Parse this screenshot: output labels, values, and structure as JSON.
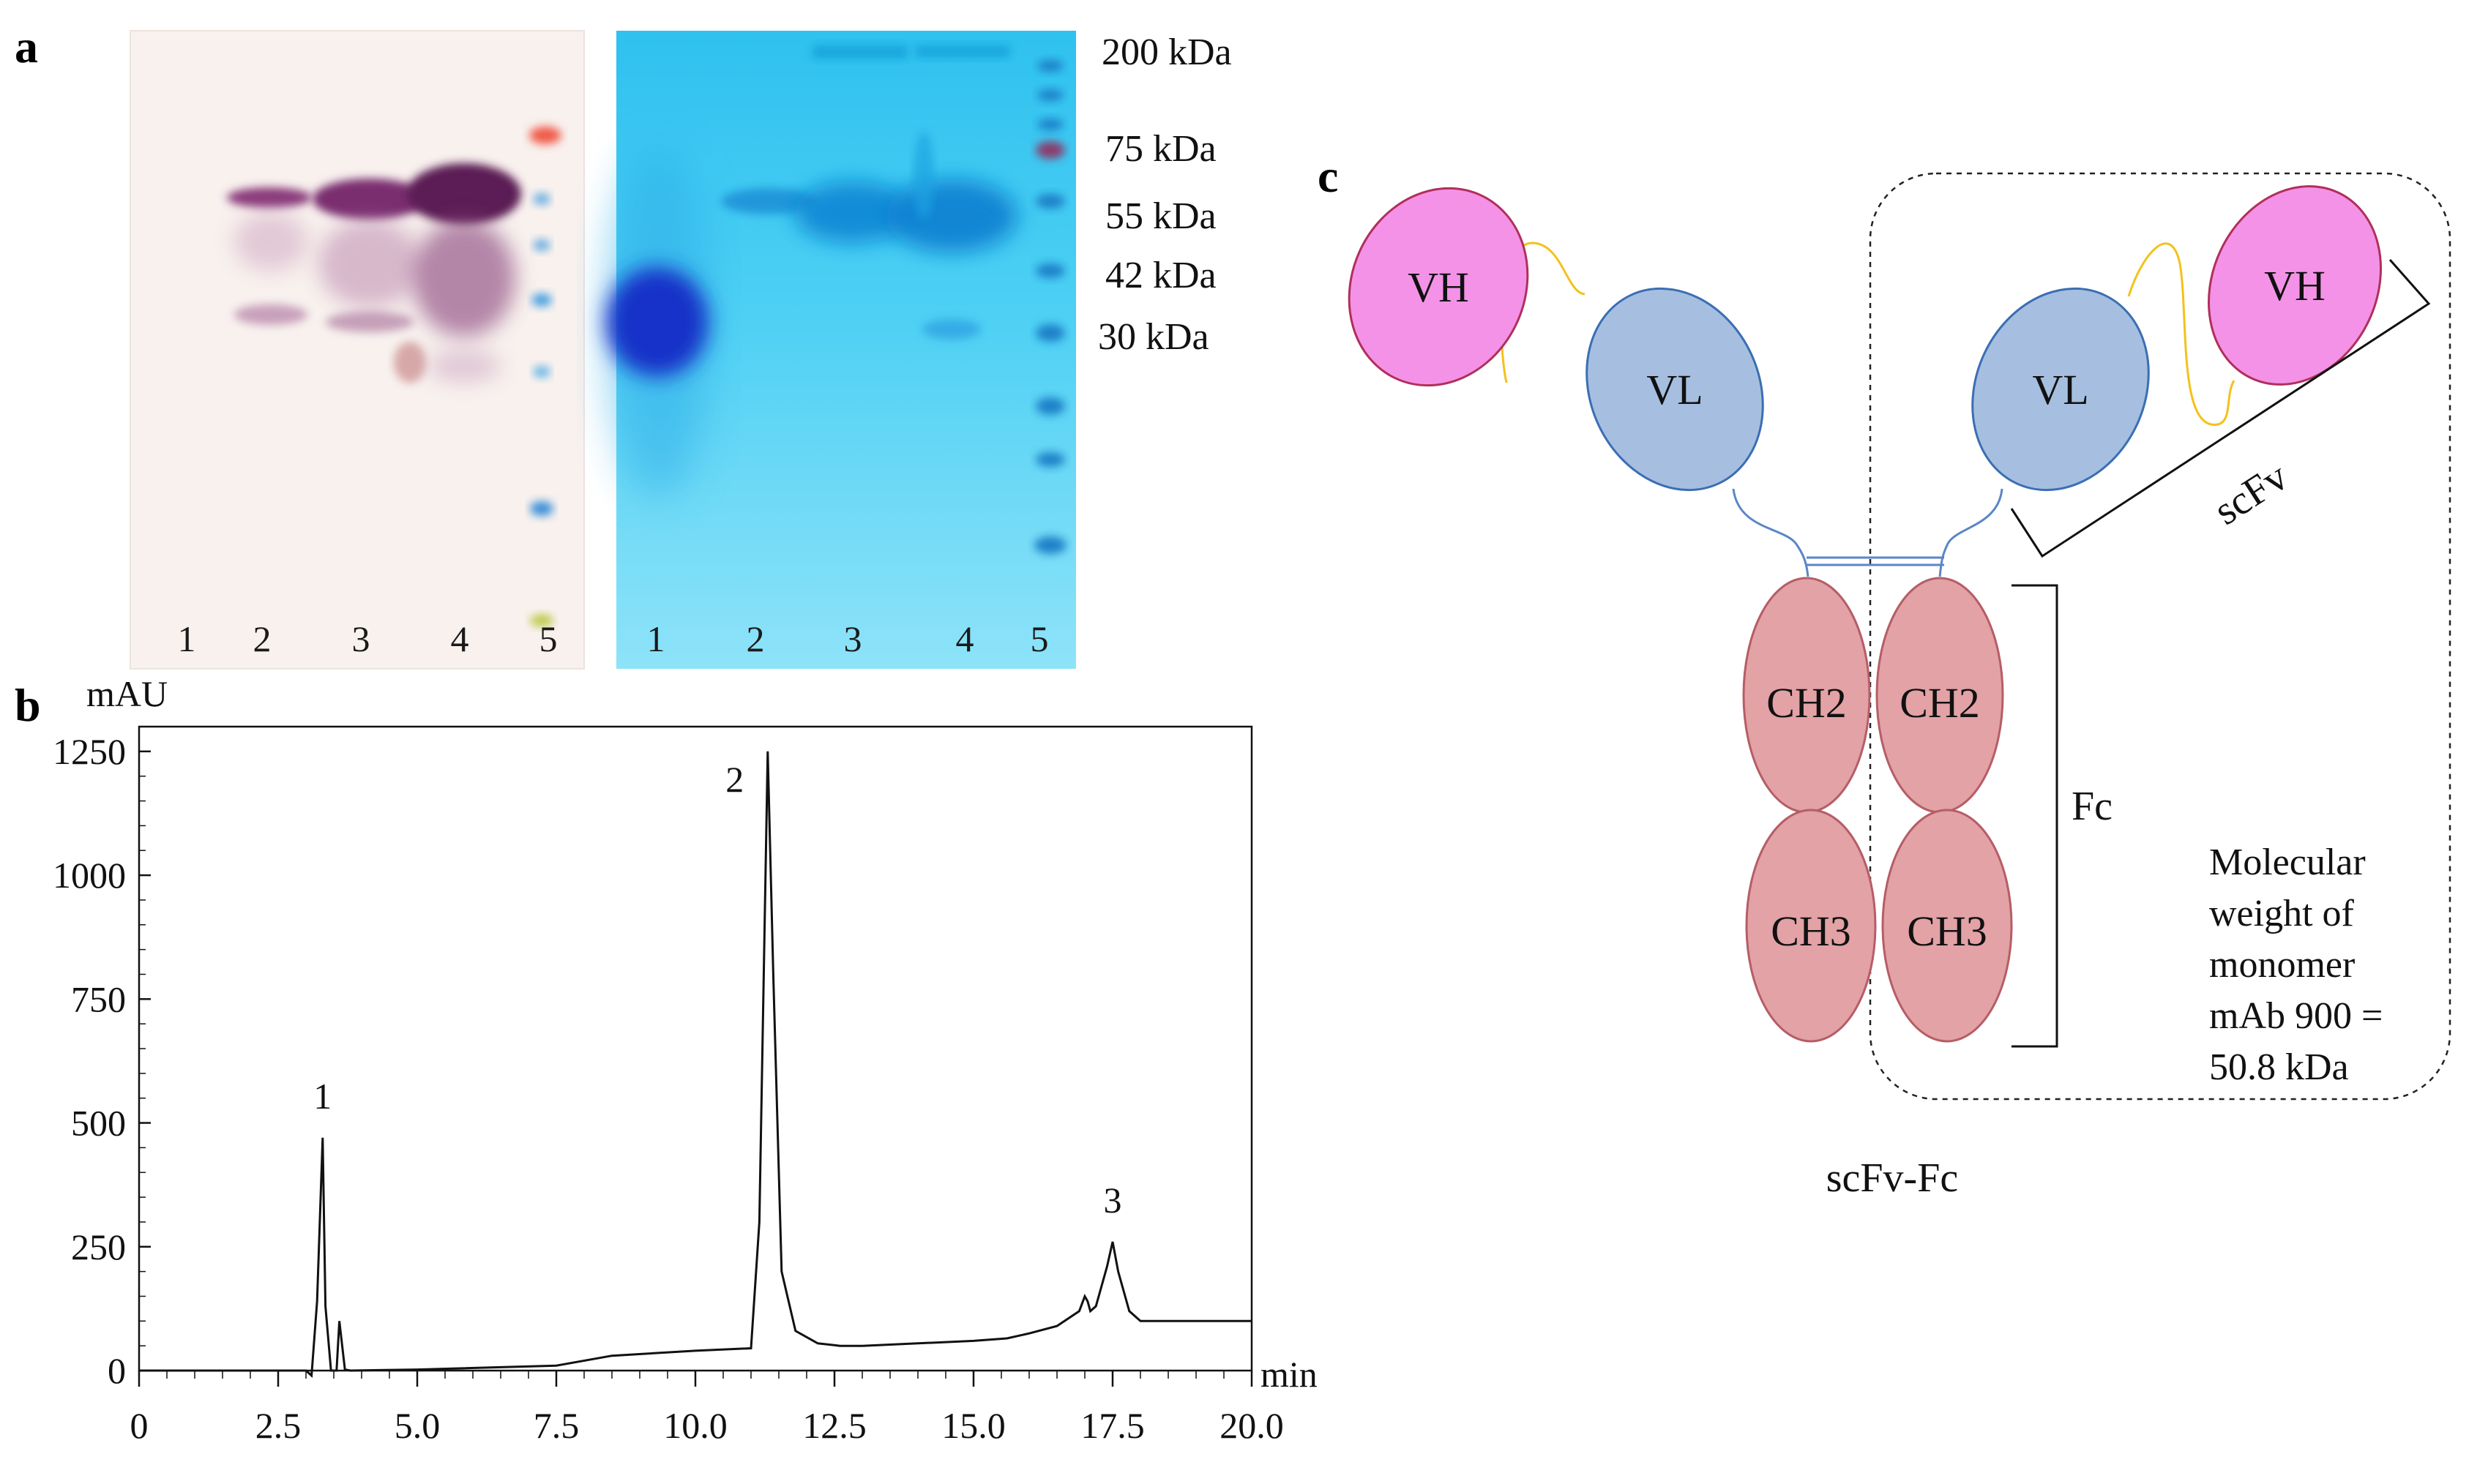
{
  "panels": {
    "a": "a",
    "b": "b",
    "c": "c"
  },
  "gel_western": {
    "lanes": [
      "1",
      "2",
      "3",
      "4",
      "5"
    ]
  },
  "gel_coomassie": {
    "lanes": [
      "1",
      "2",
      "3",
      "4",
      "5"
    ]
  },
  "mw_markers": [
    "200 kDa",
    "75 kDa",
    "55 kDa",
    "42 kDa",
    "30 kDa"
  ],
  "chart_data": {
    "type": "line",
    "title": "",
    "ylabel": "mAU",
    "xlabel": "min",
    "xlim": [
      0,
      20
    ],
    "ylim": [
      0,
      1300
    ],
    "xticks": [
      "0",
      "2.5",
      "5.0",
      "7.5",
      "10.0",
      "12.5",
      "15.0",
      "17.5",
      "20.0"
    ],
    "yticks": [
      "0",
      "250",
      "500",
      "750",
      "1000",
      "1250"
    ],
    "series": [
      {
        "name": "chromatogram",
        "x": [
          0,
          3.0,
          3.1,
          3.2,
          3.3,
          3.35,
          3.45,
          3.55,
          3.6,
          3.7,
          3.8,
          5.0,
          7.5,
          8.5,
          10.0,
          11.0,
          11.15,
          11.3,
          11.4,
          11.55,
          11.8,
          12.2,
          12.6,
          13.0,
          14.0,
          15.0,
          15.6,
          16.0,
          16.5,
          16.9,
          17.0,
          17.05,
          17.1,
          17.2,
          17.4,
          17.5,
          17.6,
          17.8,
          18.0,
          19.0,
          20.0
        ],
        "y": [
          0,
          0,
          -10,
          140,
          470,
          130,
          0,
          0,
          100,
          2,
          0,
          2,
          10,
          30,
          40,
          45,
          300,
          1250,
          800,
          200,
          80,
          55,
          50,
          50,
          55,
          60,
          65,
          75,
          90,
          120,
          150,
          140,
          120,
          130,
          210,
          260,
          200,
          120,
          100,
          100,
          100
        ]
      }
    ],
    "peak_labels": [
      {
        "label": "1",
        "x": 3.3,
        "y": 470
      },
      {
        "label": "2",
        "x": 11.3,
        "y": 1250
      },
      {
        "label": "3",
        "x": 17.5,
        "y": 260
      }
    ]
  },
  "diagram": {
    "left_arm": {
      "vh": "VH",
      "vl": "VL"
    },
    "right_arm": {
      "vh": "VH",
      "vl": "VL"
    },
    "fc_left": {
      "ch2": "CH2",
      "ch3": "CH3"
    },
    "fc_right": {
      "ch2": "CH2",
      "ch3": "CH3"
    },
    "scfv_label": "scFv",
    "fc_label": "Fc",
    "mw_note": [
      "Molecular",
      "weight of",
      "monomer",
      "mAb 900 =",
      "50.8 kDa"
    ],
    "construct_label": "scFv-Fc"
  },
  "colors": {
    "vh_fill": "#f492e8",
    "vh_stroke": "#b0305a",
    "vl_fill": "#a6bfe0",
    "vl_stroke": "#3b6eb3",
    "ch_fill": "#e2a2a6",
    "ch_stroke": "#b65d66",
    "linker": "#f2c21b",
    "hinge": "#5a86c8",
    "gel_bg": "#f8f1ef",
    "coomassie_bg": "#57d3f2"
  }
}
